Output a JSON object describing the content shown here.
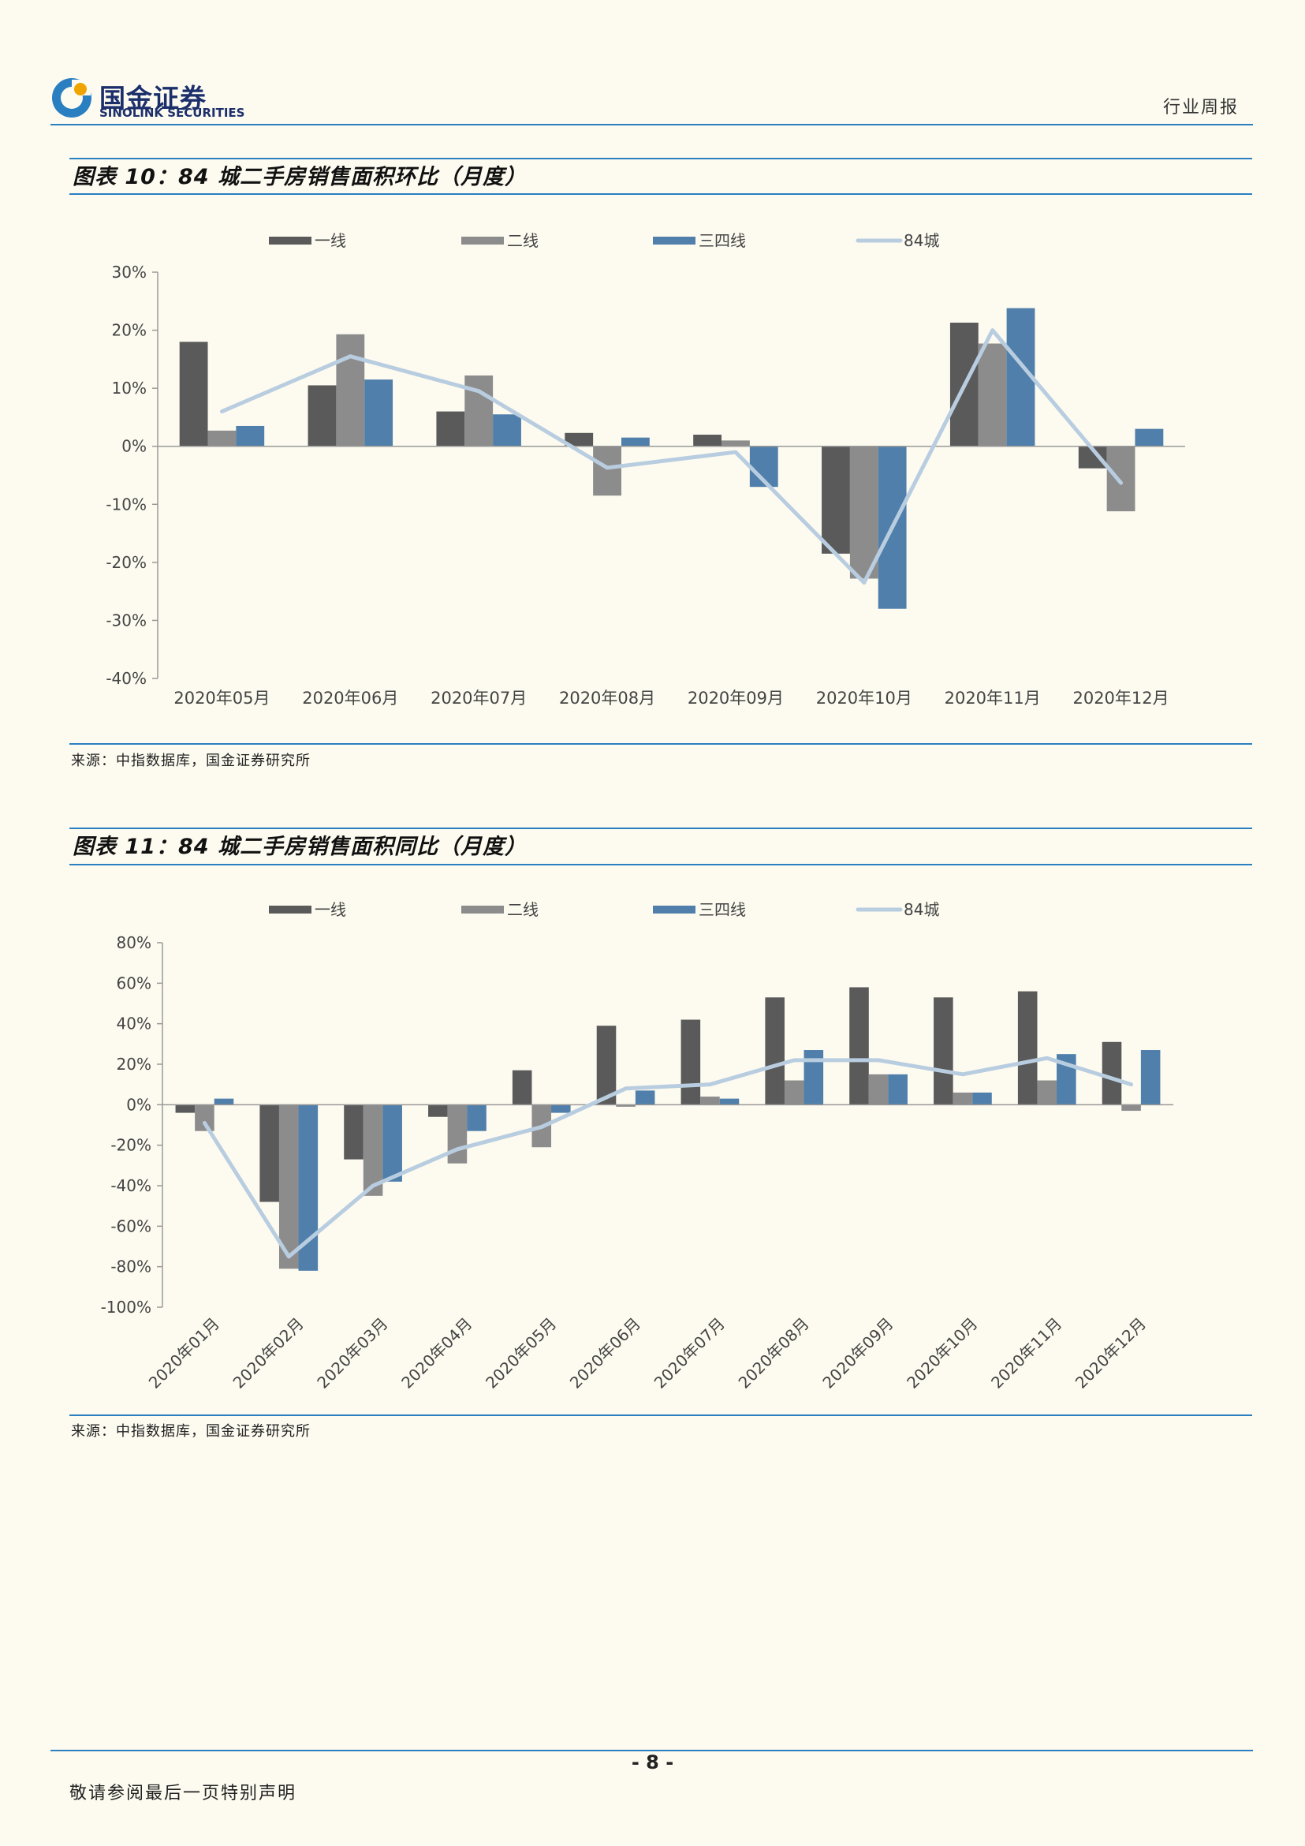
{
  "header": {
    "logo_cn": "国金证券",
    "logo_en": "SINOLINK SECURITIES",
    "report_type": "行业周报"
  },
  "figures": [
    {
      "title": "图表 10：84 城二手房销售面积环比（月度）",
      "source": "来源：中指数据库，国金证券研究所"
    },
    {
      "title": "图表 11：84 城二手房销售面积同比（月度）",
      "source": "来源：中指数据库，国金证券研究所"
    }
  ],
  "colors": {
    "tier1": "#5a5a5a",
    "tier2": "#8c8c8c",
    "tier34": "#4f7faa",
    "city84": "#b9cde0",
    "accent": "#2a7fc1"
  },
  "chart_data": [
    {
      "type": "bar",
      "categories": [
        "2020年05月",
        "2020年06月",
        "2020年07月",
        "2020年08月",
        "2020年09月",
        "2020年10月",
        "2020年11月",
        "2020年12月"
      ],
      "series": [
        {
          "name": "一线",
          "type": "bar",
          "values": [
            18,
            10.5,
            6,
            2.3,
            2,
            -18.5,
            21.3,
            -3.8
          ]
        },
        {
          "name": "二线",
          "type": "bar",
          "values": [
            2.7,
            19.3,
            12.2,
            -8.5,
            1,
            -22.8,
            17.7,
            -11.2
          ]
        },
        {
          "name": "三四线",
          "type": "bar",
          "values": [
            3.5,
            11.5,
            5.5,
            1.5,
            -7,
            -28,
            23.8,
            3
          ]
        },
        {
          "name": "84城",
          "type": "line",
          "values": [
            6,
            15.5,
            9.5,
            -3.7,
            -1,
            -23.5,
            20,
            -6.3
          ]
        }
      ],
      "yticks": [
        "30%",
        "20%",
        "10%",
        "0%",
        "-10%",
        "-20%",
        "-30%",
        "-40%"
      ],
      "ylim": [
        -40,
        30
      ],
      "legend": "top"
    },
    {
      "type": "bar",
      "categories": [
        "2020年01月",
        "2020年02月",
        "2020年03月",
        "2020年04月",
        "2020年05月",
        "2020年06月",
        "2020年07月",
        "2020年08月",
        "2020年09月",
        "2020年10月",
        "2020年11月",
        "2020年12月"
      ],
      "series": [
        {
          "name": "一线",
          "type": "bar",
          "values": [
            -4,
            -48,
            -27,
            -6,
            17,
            39,
            42,
            53,
            58,
            53,
            56,
            31
          ]
        },
        {
          "name": "二线",
          "type": "bar",
          "values": [
            -13,
            -81,
            -45,
            -29,
            -21,
            -1,
            4,
            12,
            15,
            6,
            12,
            -3
          ]
        },
        {
          "name": "三四线",
          "type": "bar",
          "values": [
            3,
            -82,
            -38,
            -13,
            -4,
            7,
            3,
            27,
            15,
            6,
            25,
            27
          ]
        },
        {
          "name": "84城",
          "type": "line",
          "values": [
            -9,
            -75,
            -40,
            -22,
            -11,
            8,
            10,
            22,
            22,
            15,
            23,
            10
          ]
        }
      ],
      "yticks": [
        "80%",
        "60%",
        "40%",
        "20%",
        "0%",
        "-20%",
        "-40%",
        "-60%",
        "-80%",
        "-100%"
      ],
      "ylim": [
        -100,
        80
      ],
      "legend": "top"
    }
  ],
  "footer": {
    "page_number": "- 8 -",
    "disclaimer": "敬请参阅最后一页特别声明"
  }
}
